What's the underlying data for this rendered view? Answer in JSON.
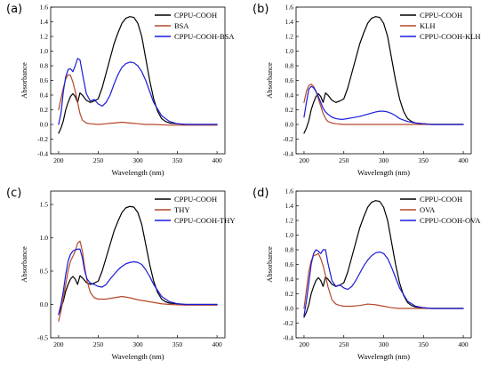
{
  "chart_data": [
    {
      "type": "line",
      "panel": "(a)",
      "xlabel": "Wavelength (nm)",
      "ylabel": "Absorbance",
      "xlim": [
        190,
        410
      ],
      "ylim": [
        -0.4,
        1.6
      ],
      "xticks": [
        200,
        250,
        300,
        350,
        400
      ],
      "yticks": [
        -0.4,
        -0.2,
        0.0,
        0.2,
        0.4,
        0.6,
        0.8,
        1.0,
        1.2,
        1.4,
        1.6
      ],
      "ytick_labels": [
        "-0.4",
        "-0.2",
        "0.0",
        "0.2",
        "0.4",
        "0.6",
        "0.8",
        "1.0",
        "1.2",
        "1.4",
        "1.6"
      ],
      "grid": false,
      "legend_position": "top-left",
      "series": [
        {
          "name": "CPPU-COOH",
          "color": "#000000",
          "x": [
            200,
            203,
            206,
            209,
            212,
            215,
            218,
            221,
            224,
            227,
            230,
            235,
            240,
            245,
            250,
            255,
            260,
            265,
            270,
            275,
            280,
            285,
            290,
            295,
            300,
            305,
            310,
            315,
            320,
            325,
            330,
            335,
            340,
            350,
            360,
            380,
            400
          ],
          "y": [
            -0.12,
            -0.05,
            0.05,
            0.2,
            0.3,
            0.38,
            0.42,
            0.38,
            0.3,
            0.43,
            0.4,
            0.33,
            0.3,
            0.32,
            0.35,
            0.5,
            0.7,
            0.9,
            1.1,
            1.25,
            1.38,
            1.45,
            1.47,
            1.46,
            1.38,
            1.2,
            0.9,
            0.6,
            0.35,
            0.18,
            0.08,
            0.04,
            0.02,
            0.01,
            0.0,
            0.0,
            0.0
          ]
        },
        {
          "name": "BSA",
          "color": "#b5482a",
          "x": [
            200,
            203,
            206,
            209,
            212,
            215,
            218,
            221,
            224,
            227,
            230,
            235,
            240,
            250,
            260,
            270,
            280,
            290,
            300,
            310,
            320,
            340,
            360,
            400
          ],
          "y": [
            0.2,
            0.35,
            0.5,
            0.62,
            0.68,
            0.67,
            0.58,
            0.45,
            0.3,
            0.15,
            0.06,
            0.02,
            0.01,
            0.0,
            0.01,
            0.02,
            0.03,
            0.02,
            0.01,
            0.0,
            0.0,
            -0.01,
            -0.01,
            -0.01
          ]
        },
        {
          "name": "CPPU-COOH-BSA",
          "color": "#1a1adb",
          "x": [
            200,
            203,
            206,
            209,
            212,
            215,
            218,
            221,
            224,
            227,
            230,
            235,
            240,
            245,
            250,
            255,
            260,
            265,
            270,
            275,
            280,
            285,
            290,
            295,
            300,
            305,
            310,
            315,
            320,
            330,
            340,
            350,
            360,
            380,
            400
          ],
          "y": [
            0.0,
            0.15,
            0.45,
            0.65,
            0.75,
            0.76,
            0.72,
            0.8,
            0.9,
            0.88,
            0.7,
            0.42,
            0.32,
            0.34,
            0.28,
            0.25,
            0.3,
            0.4,
            0.55,
            0.68,
            0.78,
            0.83,
            0.85,
            0.84,
            0.8,
            0.72,
            0.6,
            0.45,
            0.3,
            0.12,
            0.04,
            0.01,
            0.0,
            0.0,
            0.0
          ]
        }
      ]
    },
    {
      "type": "line",
      "panel": "(b)",
      "xlabel": "Wavelength (nm)",
      "ylabel": "Absorbance",
      "xlim": [
        190,
        410
      ],
      "ylim": [
        -0.4,
        1.6
      ],
      "xticks": [
        200,
        250,
        300,
        350,
        400
      ],
      "yticks": [
        -0.4,
        -0.2,
        0.0,
        0.2,
        0.4,
        0.6,
        0.8,
        1.0,
        1.2,
        1.4,
        1.6
      ],
      "ytick_labels": [
        "-0.4",
        "-0.2",
        "0.0",
        "0.2",
        "0.4",
        "0.6",
        "0.8",
        "1.0",
        "1.2",
        "1.4",
        "1.6"
      ],
      "grid": false,
      "legend_position": "top-left",
      "series": [
        {
          "name": "CPPU-COOH",
          "color": "#000000",
          "x": [
            200,
            203,
            206,
            209,
            212,
            215,
            218,
            221,
            224,
            227,
            230,
            235,
            240,
            245,
            250,
            255,
            260,
            265,
            270,
            275,
            280,
            285,
            290,
            295,
            300,
            305,
            310,
            315,
            320,
            325,
            330,
            335,
            340,
            350,
            360,
            380,
            400
          ],
          "y": [
            -0.12,
            -0.05,
            0.05,
            0.2,
            0.3,
            0.38,
            0.42,
            0.38,
            0.3,
            0.43,
            0.4,
            0.33,
            0.3,
            0.32,
            0.35,
            0.5,
            0.7,
            0.9,
            1.1,
            1.25,
            1.38,
            1.45,
            1.47,
            1.46,
            1.38,
            1.2,
            0.9,
            0.6,
            0.35,
            0.18,
            0.08,
            0.04,
            0.02,
            0.01,
            0.0,
            0.0,
            0.0
          ]
        },
        {
          "name": "KLH",
          "color": "#b5482a",
          "x": [
            200,
            203,
            206,
            209,
            212,
            215,
            218,
            221,
            224,
            227,
            230,
            235,
            240,
            250,
            260,
            270,
            280,
            290,
            300,
            320,
            340,
            360,
            400
          ],
          "y": [
            0.3,
            0.45,
            0.53,
            0.55,
            0.52,
            0.45,
            0.35,
            0.25,
            0.15,
            0.08,
            0.04,
            0.02,
            0.01,
            0.0,
            0.0,
            0.0,
            0.0,
            0.0,
            0.0,
            0.0,
            0.0,
            0.0,
            0.0
          ]
        },
        {
          "name": "CPPU-COOH-KLH",
          "color": "#1a1adb",
          "x": [
            200,
            203,
            206,
            209,
            212,
            215,
            218,
            221,
            224,
            227,
            230,
            235,
            240,
            245,
            250,
            255,
            260,
            270,
            280,
            290,
            295,
            300,
            305,
            310,
            315,
            320,
            330,
            340,
            350,
            360,
            380,
            400
          ],
          "y": [
            0.1,
            0.3,
            0.48,
            0.52,
            0.5,
            0.45,
            0.38,
            0.3,
            0.22,
            0.17,
            0.14,
            0.1,
            0.08,
            0.07,
            0.07,
            0.08,
            0.09,
            0.11,
            0.14,
            0.17,
            0.18,
            0.18,
            0.17,
            0.15,
            0.12,
            0.08,
            0.04,
            0.02,
            0.01,
            0.0,
            0.0,
            0.0
          ]
        }
      ]
    },
    {
      "type": "line",
      "panel": "(c)",
      "xlabel": "Wavelength (nm)",
      "ylabel": "Absorbance",
      "xlim": [
        190,
        410
      ],
      "ylim": [
        -0.5,
        1.7
      ],
      "xticks": [
        200,
        250,
        300,
        350,
        400
      ],
      "yticks": [
        -0.5,
        0.0,
        0.5,
        1.0,
        1.5
      ],
      "ytick_labels": [
        "-0.5",
        "0.0",
        "0.5",
        "1.0",
        "1.5"
      ],
      "grid": false,
      "legend_position": "top-left",
      "series": [
        {
          "name": "CPPU-COOH",
          "color": "#000000",
          "x": [
            200,
            203,
            206,
            209,
            212,
            215,
            218,
            221,
            224,
            227,
            230,
            235,
            240,
            245,
            250,
            255,
            260,
            265,
            270,
            275,
            280,
            285,
            290,
            295,
            300,
            305,
            310,
            315,
            320,
            325,
            330,
            335,
            340,
            350,
            360,
            380,
            400
          ],
          "y": [
            -0.15,
            -0.05,
            0.05,
            0.2,
            0.3,
            0.38,
            0.42,
            0.38,
            0.3,
            0.43,
            0.4,
            0.33,
            0.3,
            0.32,
            0.35,
            0.5,
            0.7,
            0.9,
            1.1,
            1.25,
            1.38,
            1.45,
            1.47,
            1.46,
            1.38,
            1.2,
            0.9,
            0.6,
            0.35,
            0.18,
            0.08,
            0.04,
            0.02,
            0.01,
            0.0,
            0.0,
            0.0
          ]
        },
        {
          "name": "THY",
          "color": "#b5482a",
          "x": [
            200,
            203,
            206,
            209,
            212,
            215,
            218,
            221,
            224,
            227,
            230,
            233,
            236,
            240,
            245,
            250,
            260,
            270,
            280,
            290,
            300,
            310,
            320,
            330,
            340,
            360,
            400
          ],
          "y": [
            -0.25,
            -0.1,
            0.1,
            0.3,
            0.5,
            0.65,
            0.72,
            0.8,
            0.92,
            0.95,
            0.8,
            0.55,
            0.35,
            0.18,
            0.1,
            0.08,
            0.08,
            0.1,
            0.12,
            0.1,
            0.07,
            0.05,
            0.03,
            0.01,
            0.0,
            -0.01,
            -0.01
          ]
        },
        {
          "name": "CPPU-COOH-THY",
          "color": "#1a1adb",
          "x": [
            200,
            203,
            206,
            209,
            212,
            215,
            218,
            221,
            224,
            227,
            230,
            233,
            236,
            240,
            245,
            250,
            255,
            260,
            265,
            270,
            275,
            280,
            285,
            290,
            295,
            300,
            305,
            310,
            315,
            320,
            330,
            340,
            350,
            360,
            380,
            400
          ],
          "y": [
            -0.15,
            0.0,
            0.2,
            0.45,
            0.65,
            0.75,
            0.8,
            0.82,
            0.83,
            0.83,
            0.7,
            0.5,
            0.38,
            0.32,
            0.3,
            0.27,
            0.26,
            0.3,
            0.38,
            0.45,
            0.52,
            0.57,
            0.61,
            0.63,
            0.64,
            0.63,
            0.6,
            0.52,
            0.42,
            0.3,
            0.12,
            0.04,
            0.01,
            0.0,
            0.0,
            0.0
          ]
        }
      ]
    },
    {
      "type": "line",
      "panel": "(d)",
      "xlabel": "Wavelength (nm)",
      "ylabel": "Absorbance",
      "xlim": [
        190,
        410
      ],
      "ylim": [
        -0.4,
        1.6
      ],
      "xticks": [
        200,
        250,
        300,
        350,
        400
      ],
      "yticks": [
        -0.4,
        -0.2,
        0.0,
        0.2,
        0.4,
        0.6,
        0.8,
        1.0,
        1.2,
        1.4,
        1.6
      ],
      "ytick_labels": [
        "-0.4",
        "-0.2",
        "0.0",
        "0.2",
        "0.4",
        "0.6",
        "0.8",
        "1.0",
        "1.2",
        "1.4",
        "1.6"
      ],
      "grid": false,
      "legend_position": "top-left",
      "series": [
        {
          "name": "CPPU-COOH",
          "color": "#000000",
          "x": [
            200,
            203,
            206,
            209,
            212,
            215,
            218,
            221,
            224,
            227,
            230,
            235,
            240,
            245,
            250,
            255,
            260,
            265,
            270,
            275,
            280,
            285,
            290,
            295,
            300,
            305,
            310,
            315,
            320,
            325,
            330,
            335,
            340,
            350,
            360,
            380,
            400
          ],
          "y": [
            -0.12,
            -0.05,
            0.05,
            0.2,
            0.3,
            0.38,
            0.42,
            0.38,
            0.3,
            0.43,
            0.4,
            0.33,
            0.3,
            0.32,
            0.35,
            0.5,
            0.7,
            0.9,
            1.1,
            1.25,
            1.38,
            1.45,
            1.47,
            1.46,
            1.38,
            1.2,
            0.9,
            0.6,
            0.35,
            0.18,
            0.08,
            0.04,
            0.02,
            0.01,
            0.0,
            0.0,
            0.0
          ]
        },
        {
          "name": "OVA",
          "color": "#b5482a",
          "x": [
            200,
            203,
            206,
            209,
            212,
            215,
            218,
            221,
            224,
            227,
            230,
            235,
            240,
            245,
            250,
            260,
            270,
            280,
            290,
            300,
            310,
            320,
            340,
            360,
            400
          ],
          "y": [
            0.0,
            0.25,
            0.5,
            0.65,
            0.72,
            0.73,
            0.75,
            0.68,
            0.58,
            0.45,
            0.3,
            0.12,
            0.06,
            0.04,
            0.03,
            0.03,
            0.04,
            0.06,
            0.05,
            0.03,
            0.01,
            0.0,
            0.0,
            0.0,
            0.0
          ]
        },
        {
          "name": "CPPU-COOH-OVA",
          "color": "#1a1adb",
          "x": [
            200,
            203,
            206,
            209,
            212,
            215,
            218,
            221,
            224,
            227,
            230,
            235,
            240,
            245,
            250,
            255,
            260,
            265,
            270,
            275,
            280,
            285,
            290,
            295,
            300,
            305,
            310,
            315,
            320,
            330,
            340,
            350,
            360,
            380,
            400
          ],
          "y": [
            -0.1,
            0.1,
            0.35,
            0.6,
            0.75,
            0.8,
            0.78,
            0.75,
            0.8,
            0.8,
            0.62,
            0.38,
            0.3,
            0.32,
            0.28,
            0.26,
            0.3,
            0.38,
            0.48,
            0.58,
            0.66,
            0.72,
            0.76,
            0.77,
            0.75,
            0.68,
            0.56,
            0.42,
            0.28,
            0.1,
            0.03,
            0.01,
            0.0,
            0.0,
            0.0
          ]
        }
      ]
    }
  ]
}
